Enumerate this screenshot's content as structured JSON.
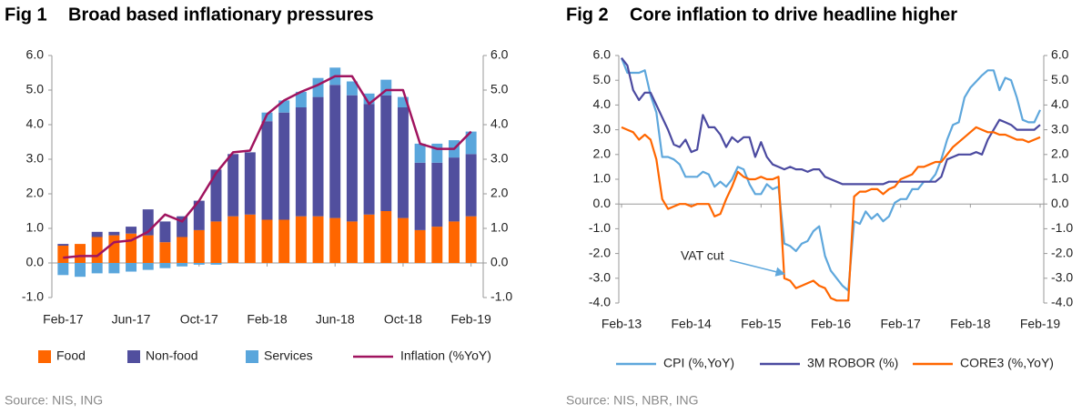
{
  "chart_data": [
    {
      "type": "bar",
      "stacked": true,
      "figure": "Fig 1",
      "title": "Broad based inflationary pressures",
      "source": "Source: NIS, ING",
      "categories": [
        "Feb-17",
        null,
        null,
        null,
        "Jun-17",
        null,
        null,
        null,
        "Oct-17",
        null,
        null,
        null,
        "Feb-18",
        null,
        null,
        null,
        "Jun-18",
        null,
        null,
        null,
        "Oct-18",
        null,
        null,
        null,
        "Feb-19"
      ],
      "series": [
        {
          "name": "Food",
          "color": "#ff6600",
          "values": [
            0.5,
            0.55,
            0.75,
            0.8,
            0.85,
            0.8,
            0.6,
            0.75,
            0.95,
            1.2,
            1.35,
            1.4,
            1.25,
            1.25,
            1.35,
            1.35,
            1.3,
            1.2,
            1.4,
            1.5,
            1.3,
            0.95,
            1.05,
            1.2,
            1.35
          ]
        },
        {
          "name": "Non-food",
          "color": "#514f9e",
          "values": [
            0.05,
            0.0,
            0.15,
            0.1,
            0.2,
            0.75,
            0.6,
            0.6,
            0.85,
            1.5,
            1.8,
            1.8,
            2.85,
            3.1,
            3.15,
            3.45,
            3.85,
            3.65,
            3.2,
            3.35,
            3.2,
            1.95,
            1.85,
            1.85,
            1.8
          ]
        },
        {
          "name": "Services",
          "color": "#5aa6dc",
          "values": [
            -0.35,
            -0.4,
            -0.3,
            -0.3,
            -0.25,
            -0.2,
            -0.15,
            -0.1,
            -0.05,
            -0.05,
            0,
            0,
            0.25,
            0.35,
            0.45,
            0.55,
            0.5,
            0.4,
            0.3,
            0.45,
            0.3,
            0.55,
            0.55,
            0.5,
            0.65
          ]
        },
        {
          "name": "Inflation (%YoY)",
          "color": "#a0145f",
          "type": "line",
          "values": [
            0.15,
            0.2,
            0.2,
            0.6,
            0.65,
            0.9,
            1.4,
            1.2,
            1.8,
            2.6,
            3.2,
            3.25,
            4.3,
            4.7,
            4.95,
            5.15,
            5.4,
            5.4,
            4.6,
            5.0,
            5.0,
            3.45,
            3.3,
            3.3,
            3.8
          ]
        }
      ],
      "ylim": [
        -1,
        6
      ],
      "yticks": [
        {
          "value": -1,
          "label": "-1.0"
        },
        {
          "value": 0,
          "label": "0.0"
        },
        {
          "value": 1,
          "label": "1.0"
        },
        {
          "value": 2,
          "label": "2.0"
        },
        {
          "value": 3,
          "label": "3.0"
        },
        {
          "value": 4,
          "label": "4.0"
        },
        {
          "value": 5,
          "label": "5.0"
        },
        {
          "value": 6,
          "label": "6.0"
        }
      ],
      "y2lim": [
        -1,
        6
      ],
      "y2ticks": [
        {
          "value": -1,
          "label": "-1.0"
        },
        {
          "value": 0,
          "label": "0.0"
        },
        {
          "value": 1,
          "label": "1.0"
        },
        {
          "value": 2,
          "label": "2.0"
        },
        {
          "value": 3,
          "label": "3.0"
        },
        {
          "value": 4,
          "label": "4.0"
        },
        {
          "value": 5,
          "label": "5.0"
        },
        {
          "value": 6,
          "label": "6.0"
        }
      ],
      "grid": false
    },
    {
      "type": "line",
      "figure": "Fig 2",
      "title": "Core inflation to drive headline higher",
      "source": "Source: NIS, NBR, ING",
      "categories": [
        "Feb-13",
        null,
        null,
        null,
        null,
        null,
        null,
        null,
        null,
        null,
        null,
        null,
        "Feb-14",
        null,
        null,
        null,
        null,
        null,
        null,
        null,
        null,
        null,
        null,
        null,
        "Feb-15",
        null,
        null,
        null,
        null,
        null,
        null,
        null,
        null,
        null,
        null,
        null,
        "Feb-16",
        null,
        null,
        null,
        null,
        null,
        null,
        null,
        null,
        null,
        null,
        null,
        "Feb-17",
        null,
        null,
        null,
        null,
        null,
        null,
        null,
        null,
        null,
        null,
        null,
        "Feb-18",
        null,
        null,
        null,
        null,
        null,
        null,
        null,
        null,
        null,
        null,
        null,
        "Feb-19"
      ],
      "series": [
        {
          "name": "CPI (%,YoY)",
          "color": "#5ea7dc",
          "values": [
            5.9,
            5.3,
            5.3,
            5.3,
            5.4,
            4.4,
            3.7,
            1.9,
            1.9,
            1.8,
            1.6,
            1.1,
            1.1,
            1.1,
            1.3,
            1.2,
            0.7,
            0.9,
            0.7,
            1.0,
            1.5,
            1.4,
            0.8,
            0.4,
            0.4,
            0.8,
            0.6,
            0.7,
            -1.6,
            -1.7,
            -1.9,
            -1.6,
            -1.5,
            -1.1,
            -0.9,
            -2.1,
            -2.7,
            -3.0,
            -3.3,
            -3.5,
            -0.7,
            -0.8,
            -0.3,
            -0.6,
            -0.4,
            -0.7,
            -0.5,
            0.05,
            0.2,
            0.2,
            0.6,
            0.6,
            0.9,
            0.9,
            1.2,
            1.8,
            2.6,
            3.2,
            3.3,
            4.3,
            4.7,
            4.95,
            5.2,
            5.4,
            5.4,
            4.6,
            5.1,
            5.0,
            4.3,
            3.4,
            3.3,
            3.3,
            3.8
          ]
        },
        {
          "name": "3M ROBOR (%)",
          "color": "#4b4aa0",
          "values": [
            5.9,
            5.6,
            4.6,
            4.2,
            4.5,
            4.5,
            4.0,
            3.5,
            3.0,
            2.4,
            2.3,
            2.6,
            2.1,
            2.2,
            3.6,
            3.1,
            3.1,
            2.8,
            2.3,
            2.7,
            2.5,
            2.7,
            2.7,
            1.9,
            2.5,
            1.9,
            1.6,
            1.5,
            1.4,
            1.5,
            1.4,
            1.4,
            1.3,
            1.4,
            1.4,
            1.1,
            1.0,
            0.9,
            0.8,
            0.8,
            0.8,
            0.8,
            0.8,
            0.8,
            0.8,
            0.8,
            0.9,
            0.9,
            0.9,
            0.9,
            0.9,
            0.9,
            0.9,
            0.9,
            0.9,
            1.1,
            1.8,
            1.9,
            2.0,
            2.0,
            2.0,
            2.1,
            2.0,
            2.6,
            3.0,
            3.4,
            3.3,
            3.2,
            3.0,
            3.0,
            3.0,
            3.0,
            3.2
          ]
        },
        {
          "name": "CORE3 (%,YoY)",
          "color": "#ff6600",
          "values": [
            3.1,
            3.0,
            2.9,
            2.6,
            2.8,
            2.6,
            1.8,
            0.2,
            -0.2,
            -0.1,
            0.0,
            0.0,
            -0.1,
            0.0,
            0.0,
            0.0,
            -0.5,
            -0.4,
            0.2,
            0.7,
            1.3,
            1.1,
            1.0,
            1.0,
            1.1,
            1.0,
            1.0,
            1.1,
            -3.0,
            -3.1,
            -3.4,
            -3.3,
            -3.2,
            -3.1,
            -3.3,
            -3.4,
            -3.8,
            -3.9,
            -3.9,
            -3.9,
            0.3,
            0.5,
            0.5,
            0.6,
            0.6,
            0.4,
            0.6,
            0.7,
            1.0,
            1.1,
            1.2,
            1.5,
            1.5,
            1.6,
            1.7,
            1.7,
            2.0,
            2.3,
            2.5,
            2.7,
            2.9,
            3.1,
            3.0,
            2.9,
            2.9,
            2.8,
            2.8,
            2.7,
            2.6,
            2.6,
            2.5,
            2.6,
            2.7
          ]
        }
      ],
      "annotations": [
        {
          "text": "VAT cut"
        }
      ],
      "ylim": [
        -4,
        6
      ],
      "yticks": [
        {
          "value": -4,
          "label": "-4.0"
        },
        {
          "value": -3,
          "label": "-3.0"
        },
        {
          "value": -2,
          "label": "-2.0"
        },
        {
          "value": -1,
          "label": "-1.0"
        },
        {
          "value": 0,
          "label": "0.0"
        },
        {
          "value": 1,
          "label": "1.0"
        },
        {
          "value": 2,
          "label": "2.0"
        },
        {
          "value": 3,
          "label": "3.0"
        },
        {
          "value": 4,
          "label": "4.0"
        },
        {
          "value": 5,
          "label": "5.0"
        },
        {
          "value": 6,
          "label": "6.0"
        }
      ],
      "y2lim": [
        -4,
        6
      ],
      "y2ticks": [
        {
          "value": -4,
          "label": "-4.0"
        },
        {
          "value": -3,
          "label": "-3.0"
        },
        {
          "value": -2,
          "label": "-2.0"
        },
        {
          "value": -1,
          "label": "-1.0"
        },
        {
          "value": 0,
          "label": "0.0"
        },
        {
          "value": 1,
          "label": "1.0"
        },
        {
          "value": 2,
          "label": "2.0"
        },
        {
          "value": 3,
          "label": "3.0"
        },
        {
          "value": 4,
          "label": "4.0"
        },
        {
          "value": 5,
          "label": "5.0"
        },
        {
          "value": 6,
          "label": "6.0"
        }
      ],
      "grid": false
    }
  ]
}
